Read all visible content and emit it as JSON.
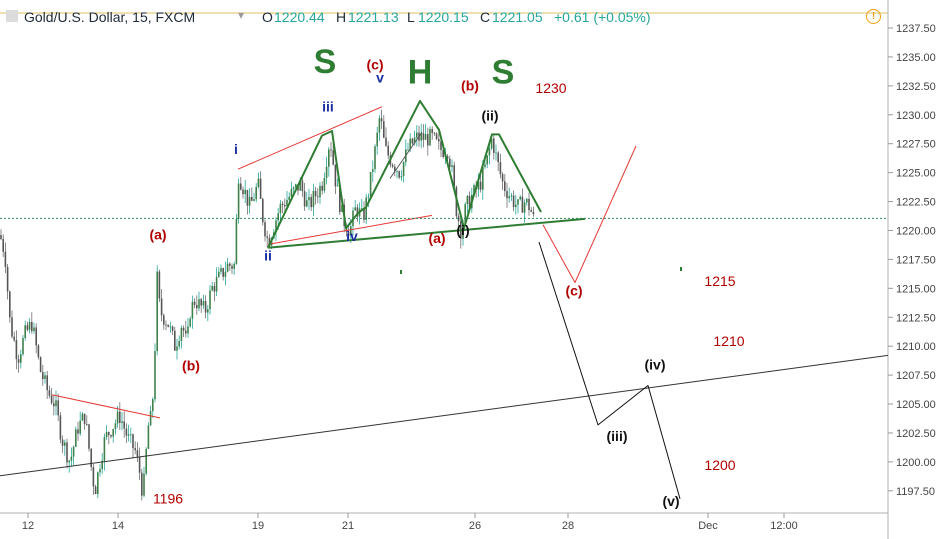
{
  "header": {
    "symbol": "Gold/U.S. Dollar, 15, FXCM",
    "open_key": "O",
    "open": "1220.44",
    "high_key": "H",
    "high": "1221.13",
    "low_key": "L",
    "low": "1220.15",
    "close_key": "C",
    "close": "1221.05",
    "change": "+0.61 (+0.05%)",
    "dropdown_icon": "chevron-down-icon",
    "alert_icon": "exclamation-circle-icon",
    "alert_glyph": "!"
  },
  "colors": {
    "up": "#26a69a",
    "down": "#6e6e6e",
    "candle_body": "#3f7f4a",
    "red_label": "#b20000",
    "blue_label": "#1a2ea0",
    "green_pattern": "#2e7d32",
    "red_line": "#e53935",
    "dotted_price": "#2e8b57"
  },
  "chart_data": {
    "type": "candlestick",
    "title": "Gold/U.S. Dollar, 15, FXCM",
    "y_axis": {
      "range": [
        1195.3,
        1238.9
      ],
      "ticks": [
        "1237.50",
        "1235.00",
        "1232.50",
        "1230.00",
        "1227.50",
        "1225.00",
        "1222.50",
        "1220.00",
        "1217.50",
        "1215.00",
        "1212.50",
        "1210.00",
        "1207.50",
        "1205.00",
        "1202.50",
        "1200.00",
        "1197.50"
      ],
      "current_price": 1221.05
    },
    "x_axis": {
      "ticks": [
        "12",
        "14",
        "19",
        "21",
        "26",
        "28",
        "Dec",
        "12:00"
      ]
    },
    "price_path": [
      [
        0,
        1219.6
      ],
      [
        5,
        1218
      ],
      [
        10,
        1212
      ],
      [
        18,
        1209
      ],
      [
        25,
        1211
      ],
      [
        32,
        1212
      ],
      [
        40,
        1208
      ],
      [
        48,
        1206
      ],
      [
        55,
        1205
      ],
      [
        62,
        1202
      ],
      [
        70,
        1200
      ],
      [
        78,
        1203
      ],
      [
        85,
        1204
      ],
      [
        92,
        1199
      ],
      [
        95,
        1197.5
      ],
      [
        100,
        1200
      ],
      [
        105,
        1202
      ],
      [
        112,
        1203
      ],
      [
        120,
        1204
      ],
      [
        128,
        1202
      ],
      [
        135,
        1201
      ],
      [
        140,
        1199
      ],
      [
        143,
        1197
      ],
      [
        148,
        1203
      ],
      [
        152,
        1204
      ],
      [
        155,
        1210
      ],
      [
        157,
        1216
      ],
      [
        160,
        1213
      ],
      [
        168,
        1212
      ],
      [
        175,
        1210
      ],
      [
        182,
        1212
      ],
      [
        187,
        1210
      ],
      [
        190,
        1213
      ],
      [
        195,
        1214
      ],
      [
        205,
        1213
      ],
      [
        212,
        1215
      ],
      [
        220,
        1216
      ],
      [
        228,
        1217
      ],
      [
        235,
        1217
      ],
      [
        238,
        1225
      ],
      [
        243,
        1223.8
      ],
      [
        250,
        1222
      ],
      [
        258,
        1224
      ],
      [
        263,
        1221
      ],
      [
        268,
        1219
      ],
      [
        272,
        1220
      ],
      [
        280,
        1222
      ],
      [
        290,
        1223
      ],
      [
        300,
        1224
      ],
      [
        308,
        1222
      ],
      [
        315,
        1223
      ],
      [
        322,
        1224
      ],
      [
        330,
        1228
      ],
      [
        336,
        1224
      ],
      [
        343,
        1221
      ],
      [
        350,
        1220
      ],
      [
        356,
        1222
      ],
      [
        363,
        1221
      ],
      [
        370,
        1224
      ],
      [
        377,
        1228
      ],
      [
        380,
        1230
      ],
      [
        385,
        1227
      ],
      [
        392,
        1226
      ],
      [
        400,
        1225
      ],
      [
        408,
        1227
      ],
      [
        416,
        1228
      ],
      [
        424,
        1228
      ],
      [
        432,
        1228
      ],
      [
        440,
        1227
      ],
      [
        448,
        1227
      ],
      [
        452,
        1225
      ],
      [
        456,
        1222
      ],
      [
        461,
        1220
      ],
      [
        466,
        1222
      ],
      [
        472,
        1223
      ],
      [
        480,
        1224
      ],
      [
        487,
        1226
      ],
      [
        492,
        1228
      ],
      [
        497,
        1226
      ],
      [
        503,
        1224
      ],
      [
        510,
        1223
      ],
      [
        518,
        1222
      ],
      [
        525,
        1222.5
      ],
      [
        530,
        1222
      ],
      [
        535,
        1220.5
      ]
    ],
    "lines": [
      {
        "name": "lower-trendline",
        "color": "#333333",
        "points": [
          [
            0,
            1198.8
          ],
          [
            888,
            1209.2
          ]
        ]
      },
      {
        "name": "neckline",
        "color": "#2e7d32",
        "points": [
          [
            268,
            1218.5
          ],
          [
            585,
            1221
          ]
        ]
      },
      {
        "name": "red-channel-top",
        "color": "#e53935",
        "points": [
          [
            238,
            1225.3
          ],
          [
            382,
            1230.7
          ]
        ]
      },
      {
        "name": "red-channel-bottom",
        "color": "#e53935",
        "points": [
          [
            268,
            1218.8
          ],
          [
            432,
            1221.3
          ]
        ]
      },
      {
        "name": "red-triangle-top",
        "color": "#e53935",
        "points": [
          [
            52,
            1205.8
          ],
          [
            160,
            1203.8
          ]
        ]
      },
      {
        "name": "gray-wedge",
        "color": "#555555",
        "points": [
          [
            390,
            1224.5
          ],
          [
            422,
            1228.5
          ]
        ]
      },
      {
        "name": "red-projection",
        "color": "#e53935",
        "points": [
          [
            543,
            1220.5
          ],
          [
            575,
            1215.5
          ],
          [
            636,
            1227.3
          ]
        ]
      },
      {
        "name": "black-projection",
        "color": "#111111",
        "points": [
          [
            539,
            1219
          ],
          [
            598,
            1203.2
          ],
          [
            648,
            1206.6
          ],
          [
            680,
            1196.8
          ]
        ]
      },
      {
        "name": "green-pattern",
        "color": "#2e7d32",
        "points": [
          [
            268,
            1218.5
          ],
          [
            322,
            1228.2
          ],
          [
            332,
            1228.6
          ],
          [
            346,
            1220.2
          ],
          [
            358,
            1221.5
          ],
          [
            366,
            1222
          ],
          [
            420,
            1231.2
          ],
          [
            439,
            1228.7
          ],
          [
            464,
            1220.2
          ],
          [
            492,
            1228.3
          ],
          [
            499,
            1228.3
          ],
          [
            541,
            1221.6
          ]
        ]
      }
    ],
    "wave_labels": [
      {
        "text": "S",
        "x": 325,
        "y": 1233.6,
        "color": "#2e7d32",
        "size": 34
      },
      {
        "text": "H",
        "x": 420,
        "y": 1232.7,
        "color": "#2e7d32",
        "size": 34
      },
      {
        "text": "S",
        "x": 503,
        "y": 1232.7,
        "color": "#2e7d32",
        "size": 34
      },
      {
        "text": "(c)",
        "x": 375,
        "y": 1233.9,
        "color": "#b20000",
        "size": 14
      },
      {
        "text": "v",
        "x": 380,
        "y": 1232.8,
        "color": "#1a2ea0",
        "size": 14
      },
      {
        "text": "(b)",
        "x": 470,
        "y": 1232.1,
        "color": "#b20000",
        "size": 14
      },
      {
        "text": "1230",
        "x": 551,
        "y": 1231.9,
        "color": "#b20000",
        "size": 14,
        "weight": "normal"
      },
      {
        "text": "(ii)",
        "x": 490,
        "y": 1229.5,
        "color": "#111111",
        "size": 14
      },
      {
        "text": "iii",
        "x": 328,
        "y": 1230.3,
        "color": "#1a2ea0",
        "size": 14
      },
      {
        "text": "i",
        "x": 236,
        "y": 1226.6,
        "color": "#1a2ea0",
        "size": 14
      },
      {
        "text": "(a)",
        "x": 158,
        "y": 1219.2,
        "color": "#b20000",
        "size": 14
      },
      {
        "text": "(a)",
        "x": 437,
        "y": 1218.9,
        "color": "#b20000",
        "size": 14
      },
      {
        "text": "(i)",
        "x": 463,
        "y": 1219.6,
        "color": "#111111",
        "size": 14
      },
      {
        "text": "iv",
        "x": 352,
        "y": 1219.1,
        "color": "#1a2ea0",
        "size": 14
      },
      {
        "text": "ii",
        "x": 268,
        "y": 1217.4,
        "color": "#1a2ea0",
        "size": 14
      },
      {
        "text": "(c)",
        "x": 574,
        "y": 1214.4,
        "color": "#b20000",
        "size": 14
      },
      {
        "text": "1215",
        "x": 720,
        "y": 1215.2,
        "color": "#b20000",
        "size": 14,
        "weight": "normal"
      },
      {
        "text": "(b)",
        "x": 191,
        "y": 1207.9,
        "color": "#b20000",
        "size": 14
      },
      {
        "text": "1210",
        "x": 729,
        "y": 1210.0,
        "color": "#b20000",
        "size": 14,
        "weight": "normal"
      },
      {
        "text": "(iv)",
        "x": 655,
        "y": 1208.0,
        "color": "#111111",
        "size": 14
      },
      {
        "text": "(iii)",
        "x": 617,
        "y": 1201.8,
        "color": "#111111",
        "size": 14
      },
      {
        "text": "1200",
        "x": 720,
        "y": 1199.3,
        "color": "#b20000",
        "size": 14,
        "weight": "normal"
      },
      {
        "text": "(v)",
        "x": 671,
        "y": 1196.2,
        "color": "#111111",
        "size": 14
      },
      {
        "text": "1196",
        "x": 168,
        "y": 1196.4,
        "color": "#b20000",
        "size": 14,
        "weight": "normal"
      }
    ]
  }
}
